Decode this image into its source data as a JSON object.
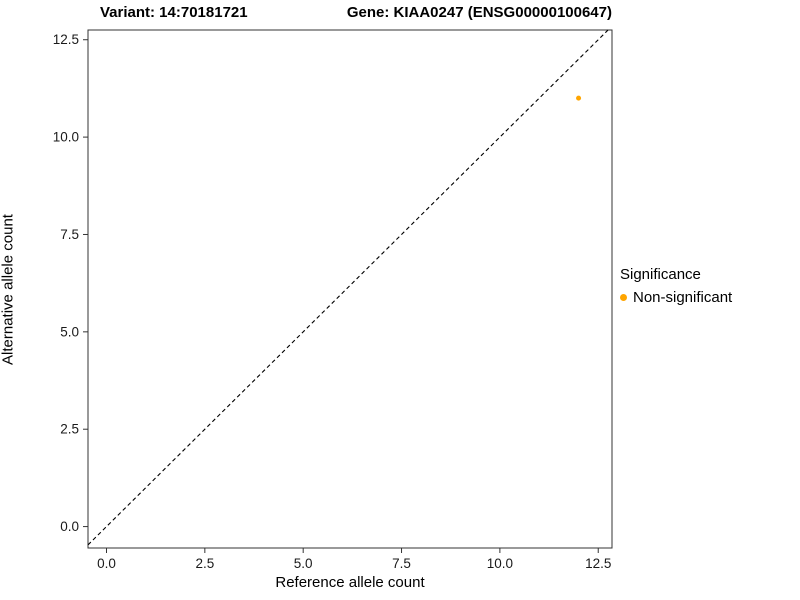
{
  "title": {
    "variant": "Variant: 14:70181721",
    "gene": "Gene: KIAA0247 (ENSG00000100647)"
  },
  "legend": {
    "title": "Significance",
    "items": [
      {
        "label": "Non-significant",
        "color": "#FFA500"
      }
    ]
  },
  "chart_data": {
    "type": "scatter",
    "title": "Variant: 14:70181721    Gene: KIAA0247 (ENSG00000100647)",
    "xlabel": "Reference allele count",
    "ylabel": "Alternative allele count",
    "xlim": [
      -0.47,
      12.85
    ],
    "ylim": [
      -0.55,
      12.75
    ],
    "x_ticks": [
      0.0,
      2.5,
      5.0,
      7.5,
      10.0,
      12.5
    ],
    "y_ticks": [
      0.0,
      2.5,
      5.0,
      7.5,
      10.0,
      12.5
    ],
    "grid": false,
    "legend_position": "right",
    "panel_border_color": "#333333",
    "series": [
      {
        "name": "Non-significant",
        "color": "#FFA500",
        "points": [
          {
            "x": 12,
            "y": 11
          }
        ]
      }
    ],
    "reference_line": {
      "type": "identity",
      "style": "dashed",
      "color": "#000000"
    }
  }
}
